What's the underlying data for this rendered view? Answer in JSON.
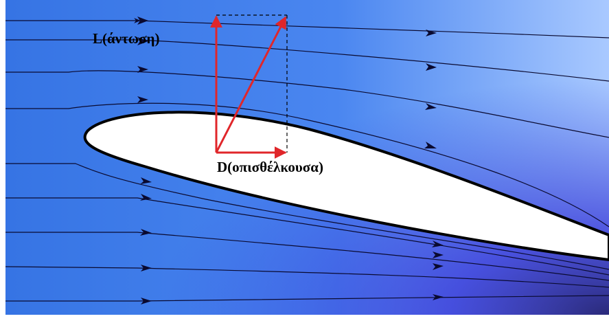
{
  "labels": {
    "lift": "L(άντωση)",
    "drag": "D(οπισθέλκουσα)"
  }
}
